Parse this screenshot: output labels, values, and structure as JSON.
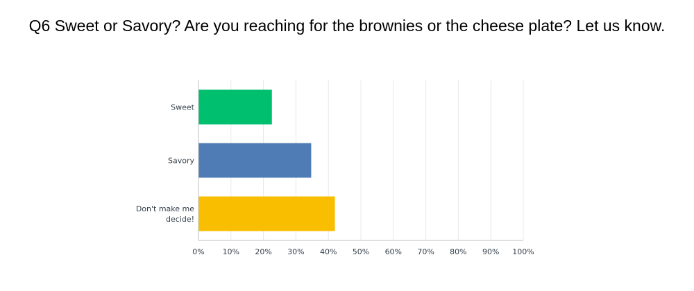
{
  "chart_data": {
    "type": "bar",
    "orientation": "horizontal",
    "title": "Q6 Sweet or Savory? Are you reaching for the brownies or the cheese plate? Let us know.",
    "categories": [
      "Sweet",
      "Savory",
      "Don't make me decide!"
    ],
    "values": [
      22.6,
      34.7,
      42.0
    ],
    "colors": [
      "#00bf6f",
      "#507cb6",
      "#f9be00"
    ],
    "xlim": [
      0,
      100
    ],
    "x_ticks": [
      "0%",
      "10%",
      "20%",
      "30%",
      "40%",
      "50%",
      "60%",
      "70%",
      "80%",
      "90%",
      "100%"
    ],
    "grid": true,
    "xlabel": "",
    "ylabel": ""
  }
}
